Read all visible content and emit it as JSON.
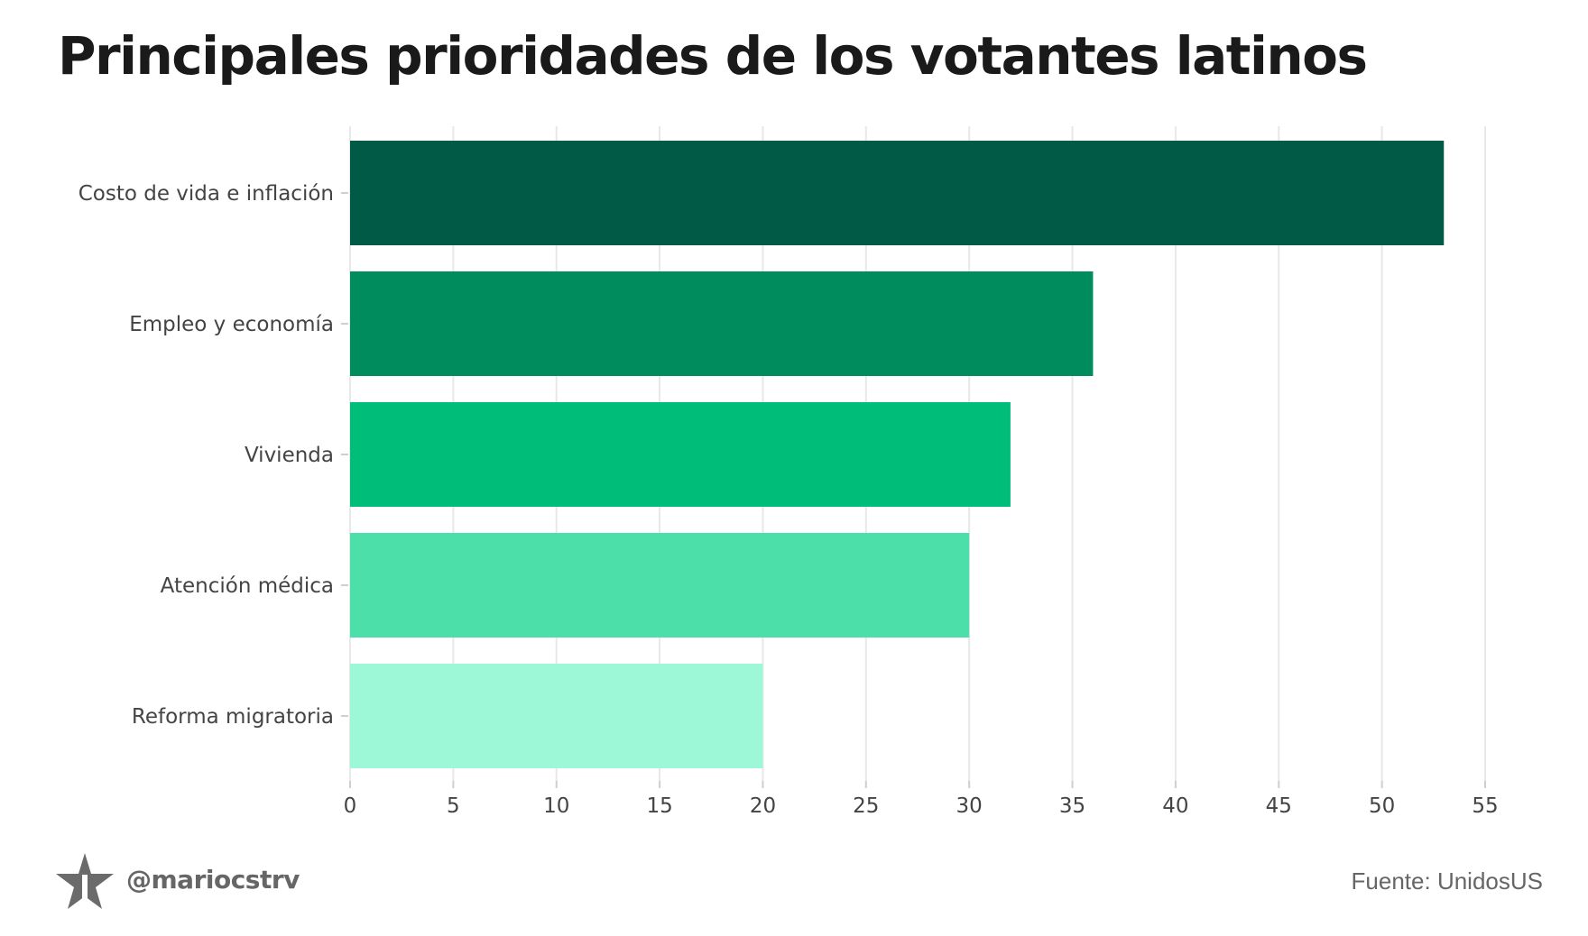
{
  "title": "Principales prioridades de los votantes latinos",
  "footer": {
    "handle": "@mariocstrv",
    "source": "Fuente: UnidosUS"
  },
  "colors": {
    "bars": [
      "#005a46",
      "#008c5c",
      "#00bd7a",
      "#4ddfaa",
      "#9cf8d6"
    ],
    "grid": "#e8e8e8",
    "text": "#444444"
  },
  "chart_data": {
    "type": "bar",
    "orientation": "horizontal",
    "title": "Principales prioridades de los votantes latinos",
    "categories": [
      "Costo de vida e inflación",
      "Empleo y economía",
      "Vivienda",
      "Atención médica",
      "Reforma migratoria"
    ],
    "values": [
      53,
      36,
      32,
      30,
      20
    ],
    "xlabel": "",
    "ylabel": "",
    "xlim": [
      0,
      55
    ],
    "xticks": [
      0,
      5,
      10,
      15,
      20,
      25,
      30,
      35,
      40,
      45,
      50,
      55
    ],
    "grid": true
  }
}
